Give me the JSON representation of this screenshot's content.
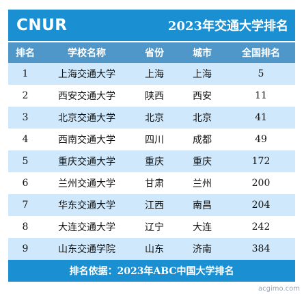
{
  "header": {
    "brand": "CNUR",
    "title": "2023年交通大学排名"
  },
  "table": {
    "columns": [
      "排名",
      "学校名称",
      "省份",
      "城市",
      "全国排名"
    ],
    "rows": [
      {
        "rank": "1",
        "school": "上海交通大学",
        "province": "上海",
        "city": "上海",
        "national": "5"
      },
      {
        "rank": "2",
        "school": "西安交通大学",
        "province": "陕西",
        "city": "西安",
        "national": "11"
      },
      {
        "rank": "3",
        "school": "北京交通大学",
        "province": "北京",
        "city": "北京",
        "national": "41"
      },
      {
        "rank": "4",
        "school": "西南交通大学",
        "province": "四川",
        "city": "成都",
        "national": "49"
      },
      {
        "rank": "5",
        "school": "重庆交通大学",
        "province": "重庆",
        "city": "重庆",
        "national": "172"
      },
      {
        "rank": "6",
        "school": "兰州交通大学",
        "province": "甘肃",
        "city": "兰州",
        "national": "200"
      },
      {
        "rank": "7",
        "school": "华东交通大学",
        "province": "江西",
        "city": "南昌",
        "national": "204"
      },
      {
        "rank": "8",
        "school": "大连交通大学",
        "province": "辽宁",
        "city": "大连",
        "national": "242"
      },
      {
        "rank": "9",
        "school": "山东交通学院",
        "province": "山东",
        "city": "济南",
        "national": "384"
      }
    ]
  },
  "footer": {
    "source": "排名依据：2023年ABC中国大学排名"
  },
  "watermark": "acgimo.com",
  "colors": {
    "banner": "#1a8fd1",
    "header_row": "#4f97c9",
    "stripe": "#cfe8fb"
  }
}
